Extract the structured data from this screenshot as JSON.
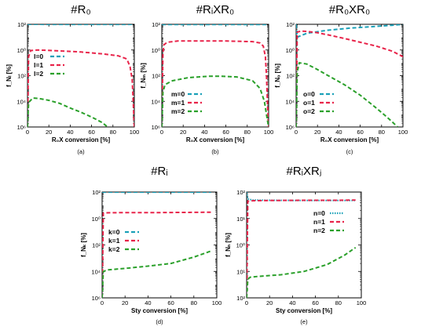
{
  "chart_data": [
    {
      "type": "line",
      "title": "#R₀",
      "xlabel": "R₀X conversion [%]",
      "ylabel": "f_Nₗ [%]",
      "caption": "(a)",
      "xlim": [
        0,
        100
      ],
      "ylim_exp": [
        -6,
        2
      ],
      "yscale": "log",
      "xticks": [
        "0",
        "20",
        "40",
        "60",
        "80",
        "100"
      ],
      "yticks": [
        "10⁶",
        "10⁴",
        "10²",
        "10⁰",
        "10²"
      ],
      "legend_loc": "center-left",
      "series": [
        {
          "name": "l=0",
          "color": "#1aa0b8",
          "dash": "5,3",
          "x": [
            0,
            1,
            5,
            20,
            50,
            80,
            95,
            98,
            100
          ],
          "y": [
            100,
            99.5,
            99.3,
            99.2,
            99.1,
            99.1,
            99.2,
            99.4,
            100
          ]
        },
        {
          "name": "l=1",
          "color": "#e8244a",
          "dash": "5,3",
          "x": [
            0,
            1,
            3,
            10,
            30,
            50,
            70,
            85,
            93,
            96,
            98,
            99,
            100
          ],
          "y": [
            1e-06,
            0.3,
            0.9,
            1.0,
            0.85,
            0.7,
            0.5,
            0.35,
            0.2,
            0.05,
            0.005,
            0.0001,
            1e-06
          ]
        },
        {
          "name": "l=2",
          "color": "#2aa02a",
          "dash": "5,3",
          "x": [
            0,
            1,
            5,
            10,
            20,
            30,
            40,
            50,
            60,
            70,
            75
          ],
          "y": [
            1e-06,
            8e-05,
            0.00018,
            0.00017,
            0.00012,
            7e-05,
            3e-05,
            1.4e-05,
            6e-06,
            2.2e-06,
            1e-06
          ]
        }
      ]
    },
    {
      "type": "line",
      "title": "#RᵢXR₀",
      "xlabel": "R₀X conversion [%]",
      "ylabel": "f_Nₘ [%]",
      "caption": "(b)",
      "xlim": [
        0,
        100
      ],
      "ylim_exp": [
        -6,
        2
      ],
      "yscale": "log",
      "xticks": [
        "0",
        "20",
        "40",
        "60",
        "80",
        "100"
      ],
      "yticks": [
        "10⁶",
        "10⁴",
        "10²",
        "10⁰",
        "10²"
      ],
      "legend_loc": "bottom-center",
      "series": [
        {
          "name": "m=0",
          "color": "#1aa0b8",
          "dash": "5,3",
          "x": [
            0,
            1,
            5,
            20,
            50,
            80,
            95,
            100
          ],
          "y": [
            100,
            97,
            96,
            95.5,
            95.5,
            95.5,
            96,
            97
          ]
        },
        {
          "name": "m=1",
          "color": "#e8244a",
          "dash": "5,3",
          "x": [
            0,
            1,
            2,
            5,
            15,
            40,
            60,
            85,
            92,
            95,
            97,
            98,
            99,
            100
          ],
          "y": [
            1e-06,
            0.5,
            2.5,
            4,
            5,
            5,
            5,
            4.5,
            3.5,
            2,
            0.3,
            0.01,
            5e-05,
            1e-06
          ]
        },
        {
          "name": "m=2",
          "color": "#2aa02a",
          "dash": "5,3",
          "x": [
            0,
            1,
            3,
            10,
            25,
            45,
            55,
            70,
            85,
            92,
            96,
            99,
            100
          ],
          "y": [
            1e-06,
            0.0005,
            0.002,
            0.004,
            0.007,
            0.009,
            0.009,
            0.008,
            0.004,
            0.001,
            0.0001,
            3e-06,
            1e-06
          ]
        }
      ]
    },
    {
      "type": "line",
      "title": "#R₀XR₀",
      "xlabel": "R₀X conversion [%]",
      "ylabel": "f_Nₒ [%]",
      "caption": "(c)",
      "xlim": [
        0,
        100
      ],
      "ylim_exp": [
        -6,
        2
      ],
      "yscale": "log",
      "xticks": [
        "0",
        "20",
        "40",
        "60",
        "80",
        "100"
      ],
      "yticks": [
        "10⁶",
        "10⁴",
        "10²",
        "10⁰",
        "10²"
      ],
      "legend_loc": "bottom-left",
      "series": [
        {
          "name": "o=0",
          "color": "#1aa0b8",
          "dash": "5,3",
          "x": [
            0,
            1,
            10,
            30,
            50,
            70,
            90,
            100
          ],
          "y": [
            100,
            10,
            20,
            35,
            50,
            65,
            85,
            98
          ]
        },
        {
          "name": "o=1",
          "color": "#e8244a",
          "dash": "5,3",
          "x": [
            0,
            1,
            5,
            10,
            20,
            30,
            45,
            60,
            75,
            90,
            100
          ],
          "y": [
            1e-06,
            25,
            30,
            28,
            22,
            15,
            8,
            4,
            2,
            0.8,
            0.3
          ]
        },
        {
          "name": "o=2",
          "color": "#2aa02a",
          "dash": "5,3",
          "x": [
            0,
            1,
            3,
            10,
            20,
            30,
            45,
            60,
            75,
            85,
            90,
            95
          ],
          "y": [
            1e-06,
            0.02,
            0.1,
            0.08,
            0.03,
            0.01,
            0.002,
            0.0003,
            3e-05,
            6e-06,
            2.5e-06,
            1e-06
          ]
        }
      ]
    },
    {
      "type": "line",
      "title": "#Rᵢ",
      "xlabel": "Sty conversion [%]",
      "ylabel": "f_Nₖ [%]",
      "caption": "(d)",
      "xlim": [
        0,
        100
      ],
      "ylim_exp": [
        -6,
        2
      ],
      "yscale": "log",
      "xticks": [
        "0",
        "20",
        "40",
        "60",
        "80",
        "100"
      ],
      "yticks": [
        "10⁶",
        "10⁴",
        "10²",
        "10⁰",
        "10²"
      ],
      "legend_loc": "center-left",
      "series": [
        {
          "name": "k=0",
          "color": "#1aa0b8",
          "dash": "5,3",
          "x": [
            0,
            1,
            5,
            20,
            50,
            80,
            95
          ],
          "y": [
            100,
            98.5,
            98.3,
            98.2,
            98.2,
            98.2,
            98.2
          ]
        },
        {
          "name": "k=1",
          "color": "#e8244a",
          "dash": "5,3",
          "x": [
            0,
            1,
            3,
            20,
            50,
            80,
            95
          ],
          "y": [
            1e-06,
            2.5,
            2.7,
            2.8,
            2.8,
            2.9,
            3
          ]
        },
        {
          "name": "k=2",
          "color": "#2aa02a",
          "dash": "5,3",
          "x": [
            0,
            1,
            5,
            20,
            40,
            60,
            80,
            95
          ],
          "y": [
            1e-06,
            0.0001,
            0.00013,
            0.00017,
            0.00025,
            0.0004,
            0.0012,
            0.0035
          ]
        }
      ]
    },
    {
      "type": "line",
      "title": "#RᵢXRⱼ",
      "xlabel": "Sty conversion [%]",
      "ylabel": "f_Nₙ [%]",
      "caption": "(e)",
      "xlim": [
        0,
        100
      ],
      "ylim_exp": [
        -2,
        2
      ],
      "yscale": "log",
      "xticks": [
        "0",
        "20",
        "40",
        "60",
        "80",
        "100"
      ],
      "yticks": [
        "10²",
        "10¹",
        "10⁰",
        "10¹",
        "10²"
      ],
      "legend_loc": "center-right",
      "series": [
        {
          "name": "n=0",
          "color": "#1aa0b8",
          "dash": "1.5,1.5",
          "x": [
            0,
            1,
            5,
            20,
            50,
            80,
            95
          ],
          "y": [
            100,
            55,
            50,
            49,
            48,
            48,
            48
          ]
        },
        {
          "name": "n=1",
          "color": "#e8244a",
          "dash": "5,3",
          "x": [
            0,
            1,
            5,
            20,
            50,
            80,
            95
          ],
          "y": [
            0.01,
            45,
            47,
            48,
            49,
            49,
            50
          ]
        },
        {
          "name": "n=2",
          "color": "#2aa02a",
          "dash": "5,3",
          "x": [
            0,
            1,
            3,
            10,
            30,
            50,
            70,
            85,
            95
          ],
          "y": [
            0.01,
            0.05,
            0.06,
            0.065,
            0.075,
            0.1,
            0.18,
            0.4,
            0.8
          ]
        }
      ]
    }
  ]
}
